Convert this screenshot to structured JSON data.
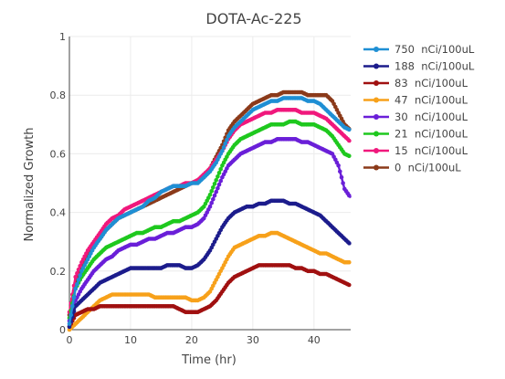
{
  "chart_data": {
    "type": "line",
    "title": "DOTA-Ac-225",
    "xlabel": "Time (hr)",
    "ylabel": "Normalized Growth",
    "xlim": [
      0,
      46
    ],
    "ylim": [
      0,
      1
    ],
    "xticks": [
      0,
      10,
      20,
      30,
      40
    ],
    "yticks": [
      0,
      0.2,
      0.4,
      0.6,
      0.8,
      1
    ],
    "legend_position": "right",
    "grid": true,
    "series": [
      {
        "name": "750  nCi/100uL",
        "color": "#1f8fd4",
        "x": [
          0,
          1,
          2,
          3,
          4,
          5,
          6,
          7,
          8,
          9,
          10,
          11,
          12,
          13,
          14,
          15,
          16,
          17,
          18,
          19,
          20,
          21,
          22,
          23,
          24,
          25,
          26,
          27,
          28,
          29,
          30,
          31,
          32,
          33,
          34,
          35,
          36,
          37,
          38,
          39,
          40,
          41,
          42,
          43,
          44,
          45,
          46
        ],
        "y": [
          0.02,
          0.14,
          0.2,
          0.24,
          0.28,
          0.31,
          0.34,
          0.36,
          0.38,
          0.39,
          0.4,
          0.41,
          0.42,
          0.44,
          0.45,
          0.47,
          0.48,
          0.49,
          0.49,
          0.49,
          0.5,
          0.5,
          0.52,
          0.54,
          0.57,
          0.61,
          0.66,
          0.69,
          0.71,
          0.73,
          0.75,
          0.76,
          0.77,
          0.78,
          0.78,
          0.79,
          0.79,
          0.79,
          0.79,
          0.78,
          0.78,
          0.77,
          0.75,
          0.73,
          0.71,
          0.69,
          0.68
        ]
      },
      {
        "name": "188  nCi/100uL",
        "color": "#1c1c8c",
        "x": [
          0,
          1,
          2,
          3,
          4,
          5,
          6,
          7,
          8,
          9,
          10,
          11,
          12,
          13,
          14,
          15,
          16,
          17,
          18,
          19,
          20,
          21,
          22,
          23,
          24,
          25,
          26,
          27,
          28,
          29,
          30,
          31,
          32,
          33,
          34,
          35,
          36,
          37,
          38,
          39,
          40,
          41,
          42,
          43,
          44,
          45,
          46
        ],
        "y": [
          0.01,
          0.08,
          0.1,
          0.12,
          0.14,
          0.16,
          0.17,
          0.18,
          0.19,
          0.2,
          0.21,
          0.21,
          0.21,
          0.21,
          0.21,
          0.21,
          0.22,
          0.22,
          0.22,
          0.21,
          0.21,
          0.22,
          0.24,
          0.27,
          0.31,
          0.35,
          0.38,
          0.4,
          0.41,
          0.42,
          0.42,
          0.43,
          0.43,
          0.44,
          0.44,
          0.44,
          0.43,
          0.43,
          0.42,
          0.41,
          0.4,
          0.39,
          0.37,
          0.35,
          0.33,
          0.31,
          0.29
        ]
      },
      {
        "name": "83  nCi/100uL",
        "color": "#a01010",
        "x": [
          0,
          1,
          2,
          3,
          4,
          5,
          6,
          7,
          8,
          9,
          10,
          11,
          12,
          13,
          14,
          15,
          16,
          17,
          18,
          19,
          20,
          21,
          22,
          23,
          24,
          25,
          26,
          27,
          28,
          29,
          30,
          31,
          32,
          33,
          34,
          35,
          36,
          37,
          38,
          39,
          40,
          41,
          42,
          43,
          44,
          45,
          46
        ],
        "y": [
          0.01,
          0.05,
          0.06,
          0.07,
          0.07,
          0.08,
          0.08,
          0.08,
          0.08,
          0.08,
          0.08,
          0.08,
          0.08,
          0.08,
          0.08,
          0.08,
          0.08,
          0.08,
          0.07,
          0.06,
          0.06,
          0.06,
          0.07,
          0.08,
          0.1,
          0.13,
          0.16,
          0.18,
          0.19,
          0.2,
          0.21,
          0.22,
          0.22,
          0.22,
          0.22,
          0.22,
          0.22,
          0.21,
          0.21,
          0.2,
          0.2,
          0.19,
          0.19,
          0.18,
          0.17,
          0.16,
          0.15
        ]
      },
      {
        "name": "47  nCi/100uL",
        "color": "#f7a11a",
        "x": [
          0,
          1,
          2,
          3,
          4,
          5,
          6,
          7,
          8,
          9,
          10,
          11,
          12,
          13,
          14,
          15,
          16,
          17,
          18,
          19,
          20,
          21,
          22,
          23,
          24,
          25,
          26,
          27,
          28,
          29,
          30,
          31,
          32,
          33,
          34,
          35,
          36,
          37,
          38,
          39,
          40,
          41,
          42,
          43,
          44,
          45,
          46
        ],
        "y": [
          0.0,
          0.02,
          0.04,
          0.06,
          0.08,
          0.1,
          0.11,
          0.12,
          0.12,
          0.12,
          0.12,
          0.12,
          0.12,
          0.12,
          0.11,
          0.11,
          0.11,
          0.11,
          0.11,
          0.11,
          0.1,
          0.1,
          0.11,
          0.13,
          0.17,
          0.21,
          0.25,
          0.28,
          0.29,
          0.3,
          0.31,
          0.32,
          0.32,
          0.33,
          0.33,
          0.32,
          0.31,
          0.3,
          0.29,
          0.28,
          0.27,
          0.26,
          0.26,
          0.25,
          0.24,
          0.23,
          0.23
        ]
      },
      {
        "name": "30  nCi/100uL",
        "color": "#6a1fd8",
        "x": [
          0,
          1,
          2,
          3,
          4,
          5,
          6,
          7,
          8,
          9,
          10,
          11,
          12,
          13,
          14,
          15,
          16,
          17,
          18,
          19,
          20,
          21,
          22,
          23,
          24,
          25,
          26,
          27,
          28,
          29,
          30,
          31,
          32,
          33,
          34,
          35,
          36,
          37,
          38,
          39,
          40,
          41,
          42,
          43,
          44,
          45,
          46
        ],
        "y": [
          0.03,
          0.1,
          0.14,
          0.17,
          0.2,
          0.22,
          0.24,
          0.25,
          0.27,
          0.28,
          0.29,
          0.29,
          0.3,
          0.31,
          0.31,
          0.32,
          0.33,
          0.33,
          0.34,
          0.35,
          0.35,
          0.36,
          0.38,
          0.42,
          0.47,
          0.52,
          0.56,
          0.58,
          0.6,
          0.61,
          0.62,
          0.63,
          0.64,
          0.64,
          0.65,
          0.65,
          0.65,
          0.65,
          0.64,
          0.64,
          0.63,
          0.62,
          0.61,
          0.6,
          0.56,
          0.48,
          0.45
        ]
      },
      {
        "name": "21  nCi/100uL",
        "color": "#1ec81e",
        "x": [
          0,
          1,
          2,
          3,
          4,
          5,
          6,
          7,
          8,
          9,
          10,
          11,
          12,
          13,
          14,
          15,
          16,
          17,
          18,
          19,
          20,
          21,
          22,
          23,
          24,
          25,
          26,
          27,
          28,
          29,
          30,
          31,
          32,
          33,
          34,
          35,
          36,
          37,
          38,
          39,
          40,
          41,
          42,
          43,
          44,
          45,
          46
        ],
        "y": [
          0.04,
          0.14,
          0.18,
          0.21,
          0.24,
          0.26,
          0.28,
          0.29,
          0.3,
          0.31,
          0.32,
          0.33,
          0.33,
          0.34,
          0.35,
          0.35,
          0.36,
          0.37,
          0.37,
          0.38,
          0.39,
          0.4,
          0.42,
          0.46,
          0.51,
          0.56,
          0.6,
          0.63,
          0.65,
          0.66,
          0.67,
          0.68,
          0.69,
          0.7,
          0.7,
          0.7,
          0.71,
          0.71,
          0.7,
          0.7,
          0.7,
          0.69,
          0.68,
          0.66,
          0.63,
          0.6,
          0.59
        ]
      },
      {
        "name": "15  nCi/100uL",
        "color": "#f0187c",
        "x": [
          0,
          1,
          2,
          3,
          4,
          5,
          6,
          7,
          8,
          9,
          10,
          11,
          12,
          13,
          14,
          15,
          16,
          17,
          18,
          19,
          20,
          21,
          22,
          23,
          24,
          25,
          26,
          27,
          28,
          29,
          30,
          31,
          32,
          33,
          34,
          35,
          36,
          37,
          38,
          39,
          40,
          41,
          42,
          43,
          44,
          45,
          46
        ],
        "y": [
          0.06,
          0.18,
          0.23,
          0.27,
          0.3,
          0.33,
          0.36,
          0.38,
          0.39,
          0.41,
          0.42,
          0.43,
          0.44,
          0.45,
          0.46,
          0.47,
          0.48,
          0.49,
          0.49,
          0.5,
          0.5,
          0.51,
          0.53,
          0.55,
          0.58,
          0.61,
          0.65,
          0.68,
          0.7,
          0.71,
          0.72,
          0.73,
          0.74,
          0.74,
          0.75,
          0.75,
          0.75,
          0.75,
          0.74,
          0.74,
          0.74,
          0.73,
          0.72,
          0.7,
          0.68,
          0.66,
          0.64
        ]
      },
      {
        "name": "0  nCi/100uL",
        "color": "#8b3a1a",
        "x": [
          0,
          1,
          2,
          3,
          4,
          5,
          6,
          7,
          8,
          9,
          10,
          11,
          12,
          13,
          14,
          15,
          16,
          17,
          18,
          19,
          20,
          21,
          22,
          23,
          24,
          25,
          26,
          27,
          28,
          29,
          30,
          31,
          32,
          33,
          34,
          35,
          36,
          37,
          38,
          39,
          40,
          41,
          42,
          43,
          44,
          45,
          46
        ],
        "y": [
          0.05,
          0.16,
          0.21,
          0.25,
          0.29,
          0.31,
          0.34,
          0.36,
          0.38,
          0.39,
          0.4,
          0.41,
          0.42,
          0.43,
          0.44,
          0.45,
          0.46,
          0.47,
          0.48,
          0.49,
          0.5,
          0.51,
          0.52,
          0.55,
          0.59,
          0.63,
          0.68,
          0.71,
          0.73,
          0.75,
          0.77,
          0.78,
          0.79,
          0.8,
          0.8,
          0.81,
          0.81,
          0.81,
          0.81,
          0.8,
          0.8,
          0.8,
          0.8,
          0.78,
          0.74,
          0.7,
          0.68
        ]
      }
    ]
  }
}
